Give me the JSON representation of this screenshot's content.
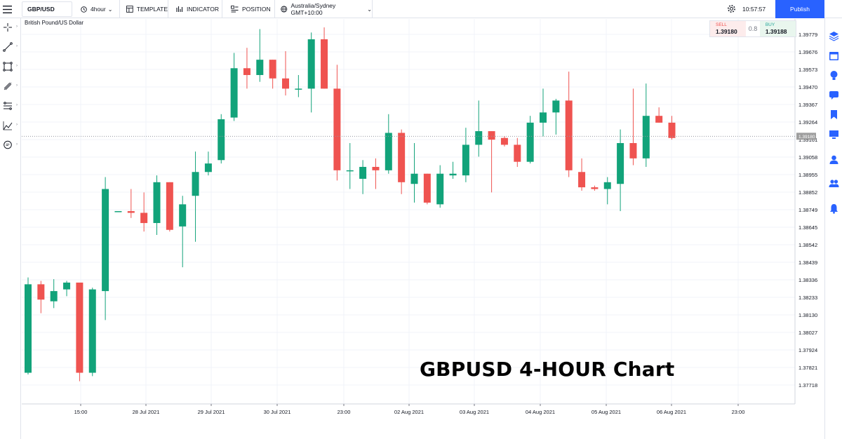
{
  "toolbar": {
    "symbol": "GBP/USD",
    "interval": "4hour",
    "template_label": "TEMPLATE",
    "indicator_label": "INDICATOR",
    "position_label": "POSITION",
    "timezone": "Australia/Sydney GMT+10:00",
    "clock": "10:57:57",
    "publish_label": "Publish"
  },
  "chart_header": {
    "description": "British Pound/US Dollar"
  },
  "trade": {
    "sell_label": "SELL",
    "sell_price": "1.39180",
    "spread": "0.8",
    "buy_label": "BUY",
    "buy_price": "1.39188"
  },
  "overlay_title": "GBPUSD 4-HOUR Chart",
  "colors": {
    "up": "#12a37a",
    "down": "#ef5350",
    "accent": "#2962ff",
    "last_price_tag": "#9e9e9e"
  },
  "left_tools": [
    "crosshair-icon",
    "trend-line-icon",
    "rectangle-icon",
    "brush-icon",
    "fibonacci-icon",
    "prediction-icon",
    "comment-icon"
  ],
  "right_tools": [
    "layers-icon",
    "calendar-icon",
    "idea-icon",
    "chat-icon",
    "bookmark-icon",
    "screen-icon",
    "user-icon",
    "users-icon",
    "alert-icon"
  ],
  "chart_data": {
    "type": "candlestick",
    "last_price": "1.39180",
    "y_ticks": [
      "1.39779",
      "1.39676",
      "1.39573",
      "1.39470",
      "1.39367",
      "1.39264",
      "1.39161",
      "1.39058",
      "1.38955",
      "1.38852",
      "1.38749",
      "1.38645",
      "1.38542",
      "1.38439",
      "1.38336",
      "1.38233",
      "1.38130",
      "1.38027",
      "1.37924",
      "1.37821",
      "1.37718"
    ],
    "x_ticks": [
      "15:00",
      "28 Jul 2021",
      "29 Jul 2021",
      "30 Jul 2021",
      "23:00",
      "02 Aug 2021",
      "03 Aug 2021",
      "04 Aug 2021",
      "05 Aug 2021",
      "06 Aug 2021",
      "23:00"
    ],
    "ylim": [
      1.3765,
      1.3984
    ],
    "candles": [
      {
        "o": 1.3779,
        "h": 1.3835,
        "l": 1.3778,
        "c": 1.3831
      },
      {
        "o": 1.3831,
        "h": 1.3833,
        "l": 1.3814,
        "c": 1.3822
      },
      {
        "o": 1.3821,
        "h": 1.3834,
        "l": 1.3817,
        "c": 1.3827
      },
      {
        "o": 1.3828,
        "h": 1.3833,
        "l": 1.3824,
        "c": 1.3832
      },
      {
        "o": 1.3832,
        "h": 1.3832,
        "l": 1.3774,
        "c": 1.3779
      },
      {
        "o": 1.3779,
        "h": 1.3829,
        "l": 1.3777,
        "c": 1.3828
      },
      {
        "o": 1.3827,
        "h": 1.3894,
        "l": 1.381,
        "c": 1.3887
      },
      {
        "o": 1.3874,
        "h": 1.3874,
        "l": 1.3874,
        "c": 1.3874
      },
      {
        "o": 1.3874,
        "h": 1.3887,
        "l": 1.387,
        "c": 1.3873
      },
      {
        "o": 1.3873,
        "h": 1.3885,
        "l": 1.3862,
        "c": 1.3867
      },
      {
        "o": 1.3867,
        "h": 1.3895,
        "l": 1.386,
        "c": 1.3891
      },
      {
        "o": 1.3891,
        "h": 1.3891,
        "l": 1.3862,
        "c": 1.3863
      },
      {
        "o": 1.3865,
        "h": 1.3883,
        "l": 1.3841,
        "c": 1.3878
      },
      {
        "o": 1.3883,
        "h": 1.3909,
        "l": 1.3856,
        "c": 1.3897
      },
      {
        "o": 1.3897,
        "h": 1.3909,
        "l": 1.3895,
        "c": 1.3902
      },
      {
        "o": 1.3904,
        "h": 1.3931,
        "l": 1.3902,
        "c": 1.3928
      },
      {
        "o": 1.3929,
        "h": 1.3967,
        "l": 1.3927,
        "c": 1.3958
      },
      {
        "o": 1.3958,
        "h": 1.397,
        "l": 1.3946,
        "c": 1.3954
      },
      {
        "o": 1.3954,
        "h": 1.3981,
        "l": 1.395,
        "c": 1.3963
      },
      {
        "o": 1.3963,
        "h": 1.3963,
        "l": 1.3946,
        "c": 1.3952
      },
      {
        "o": 1.3952,
        "h": 1.3968,
        "l": 1.3942,
        "c": 1.3946
      },
      {
        "o": 1.3946,
        "h": 1.3954,
        "l": 1.3941,
        "c": 1.3946
      },
      {
        "o": 1.3946,
        "h": 1.3979,
        "l": 1.3932,
        "c": 1.3975
      },
      {
        "o": 1.3975,
        "h": 1.3982,
        "l": 1.3946,
        "c": 1.3946
      },
      {
        "o": 1.3946,
        "h": 1.396,
        "l": 1.3892,
        "c": 1.3898
      },
      {
        "o": 1.3898,
        "h": 1.3914,
        "l": 1.3887,
        "c": 1.3898
      },
      {
        "o": 1.3893,
        "h": 1.3904,
        "l": 1.3884,
        "c": 1.39
      },
      {
        "o": 1.39,
        "h": 1.3905,
        "l": 1.3887,
        "c": 1.3898
      },
      {
        "o": 1.3898,
        "h": 1.3931,
        "l": 1.3896,
        "c": 1.392
      },
      {
        "o": 1.392,
        "h": 1.3922,
        "l": 1.3884,
        "c": 1.3891
      },
      {
        "o": 1.389,
        "h": 1.3914,
        "l": 1.3879,
        "c": 1.3896
      },
      {
        "o": 1.3896,
        "h": 1.3896,
        "l": 1.3878,
        "c": 1.3879
      },
      {
        "o": 1.3878,
        "h": 1.3901,
        "l": 1.3876,
        "c": 1.3896
      },
      {
        "o": 1.3895,
        "h": 1.3903,
        "l": 1.3893,
        "c": 1.3896
      },
      {
        "o": 1.3895,
        "h": 1.3923,
        "l": 1.3891,
        "c": 1.3913
      },
      {
        "o": 1.3913,
        "h": 1.3939,
        "l": 1.3906,
        "c": 1.3921
      },
      {
        "o": 1.3921,
        "h": 1.3921,
        "l": 1.3885,
        "c": 1.3916
      },
      {
        "o": 1.3917,
        "h": 1.3918,
        "l": 1.3912,
        "c": 1.3913
      },
      {
        "o": 1.3913,
        "h": 1.3917,
        "l": 1.39,
        "c": 1.3903
      },
      {
        "o": 1.3903,
        "h": 1.393,
        "l": 1.3902,
        "c": 1.3926
      },
      {
        "o": 1.3926,
        "h": 1.3946,
        "l": 1.3918,
        "c": 1.3932
      },
      {
        "o": 1.3932,
        "h": 1.394,
        "l": 1.3919,
        "c": 1.3939
      },
      {
        "o": 1.3939,
        "h": 1.3956,
        "l": 1.3894,
        "c": 1.3898
      },
      {
        "o": 1.3897,
        "h": 1.3905,
        "l": 1.3886,
        "c": 1.3888
      },
      {
        "o": 1.3888,
        "h": 1.3889,
        "l": 1.3886,
        "c": 1.3887
      },
      {
        "o": 1.3887,
        "h": 1.3894,
        "l": 1.3878,
        "c": 1.3891
      },
      {
        "o": 1.389,
        "h": 1.3922,
        "l": 1.3874,
        "c": 1.3914
      },
      {
        "o": 1.3914,
        "h": 1.3946,
        "l": 1.3901,
        "c": 1.3905
      },
      {
        "o": 1.3905,
        "h": 1.3949,
        "l": 1.39,
        "c": 1.393
      },
      {
        "o": 1.393,
        "h": 1.3935,
        "l": 1.3926,
        "c": 1.3926
      },
      {
        "o": 1.3926,
        "h": 1.393,
        "l": 1.3916,
        "c": 1.3917
      }
    ]
  }
}
